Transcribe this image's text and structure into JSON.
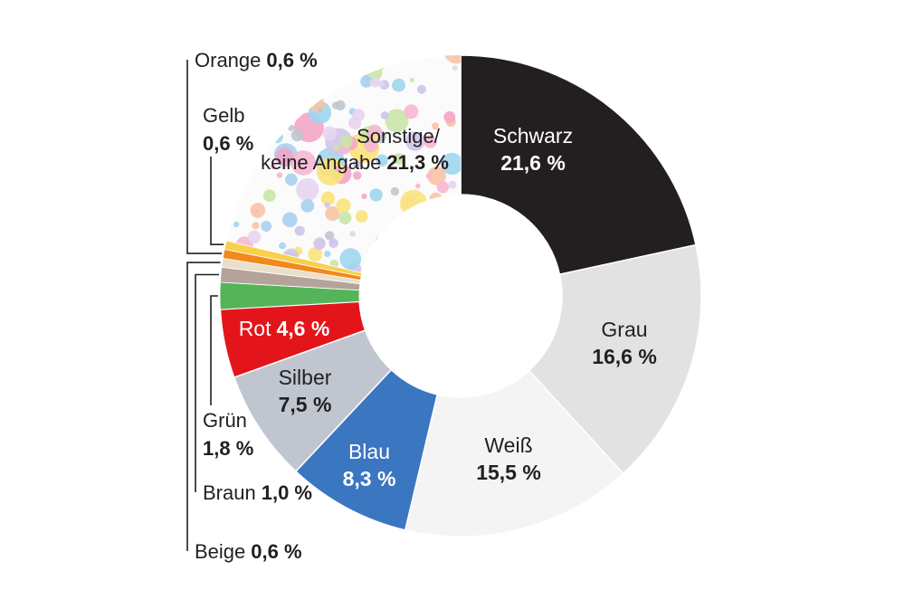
{
  "chart_data": {
    "type": "pie",
    "unit": "%",
    "slices": [
      {
        "name": "Schwarz",
        "label": "21,6 %",
        "value": 21.6,
        "color": "#231f20",
        "text_color": "#ffffff"
      },
      {
        "name": "Grau",
        "label": "16,6 %",
        "value": 16.6,
        "color": "#e2e2e2",
        "text_color": "#231f20"
      },
      {
        "name": "Weiß",
        "label": "15,5 %",
        "value": 15.5,
        "color": "#f4f4f4",
        "text_color": "#231f20"
      },
      {
        "name": "Blau",
        "label": "8,3 %",
        "value": 8.3,
        "color": "#3b76c0",
        "text_color": "#ffffff"
      },
      {
        "name": "Silber",
        "label": "7,5 %",
        "value": 7.5,
        "color": "#c0c6cf",
        "text_color": "#231f20"
      },
      {
        "name": "Rot",
        "label": "4,6 %",
        "value": 4.6,
        "color": "#e3151b",
        "text_color": "#ffffff"
      },
      {
        "name": "Grün",
        "label": "1,8 %",
        "value": 1.8,
        "color": "#55b45a",
        "text_color": "#231f20"
      },
      {
        "name": "Braun",
        "label": "1,0 %",
        "value": 1.0,
        "color": "#b3a39b",
        "text_color": "#231f20"
      },
      {
        "name": "Beige",
        "label": "0,6 %",
        "value": 0.6,
        "color": "#eadfca",
        "text_color": "#231f20"
      },
      {
        "name": "Orange",
        "label": "0,6 %",
        "value": 0.6,
        "color": "#f08a1c",
        "text_color": "#231f20"
      },
      {
        "name": "Gelb",
        "label": "0,6 %",
        "value": 0.6,
        "color": "#f9d04a",
        "text_color": "#231f20"
      },
      {
        "name": "Sonstige/",
        "name2": "keine Angabe",
        "label": "21,3 %",
        "value": 21.3,
        "color": "#fbfbfb",
        "text_color": "#231f20",
        "pattern": "confetti"
      }
    ]
  }
}
